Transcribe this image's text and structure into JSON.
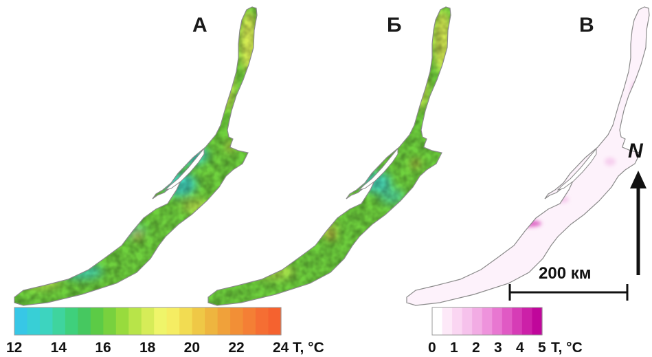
{
  "panels": [
    {
      "label": "А"
    },
    {
      "label": "Б"
    },
    {
      "label": "В"
    }
  ],
  "temperature_legend": {
    "ticks": [
      "12",
      "14",
      "16",
      "18",
      "20",
      "22",
      "24"
    ],
    "unit": "T, °C",
    "colors": [
      "#37c7e6",
      "#38cfd6",
      "#3dd4bf",
      "#3fd49e",
      "#3fd07c",
      "#46c860",
      "#5ccb46",
      "#78d13e",
      "#98db3d",
      "#b8e449",
      "#d6ec58",
      "#eff56a",
      "#f5ed63",
      "#f2dc52",
      "#efc846",
      "#eeb53f",
      "#f0a13a",
      "#f28f36",
      "#f47f35",
      "#f56e33",
      "#f5622f"
    ]
  },
  "difference_legend": {
    "ticks": [
      "0",
      "1",
      "2",
      "3",
      "4",
      "5"
    ],
    "unit": "T, °C",
    "colors": [
      "#ffffff",
      "#fde9f8",
      "#fad6f2",
      "#f6c2ec",
      "#f2ace4",
      "#ee93dc",
      "#e877d1",
      "#e05ac4",
      "#d63cb6",
      "#cc20a8",
      "#c0069b"
    ]
  },
  "scale_bar": {
    "label": "200 км"
  },
  "north_arrow": {
    "label": "N"
  },
  "map_colors": {
    "outline": "#8a8a8a",
    "lake_green": "#6fd13e",
    "lake_cyan": "#3fd3c6",
    "lake_yellow": "#e2ee55",
    "lake_orange": "#f0b545",
    "diff_base": "#fdf2fb",
    "diff_mid": "#f2b9e6",
    "diff_strong": "#d63cb6"
  }
}
